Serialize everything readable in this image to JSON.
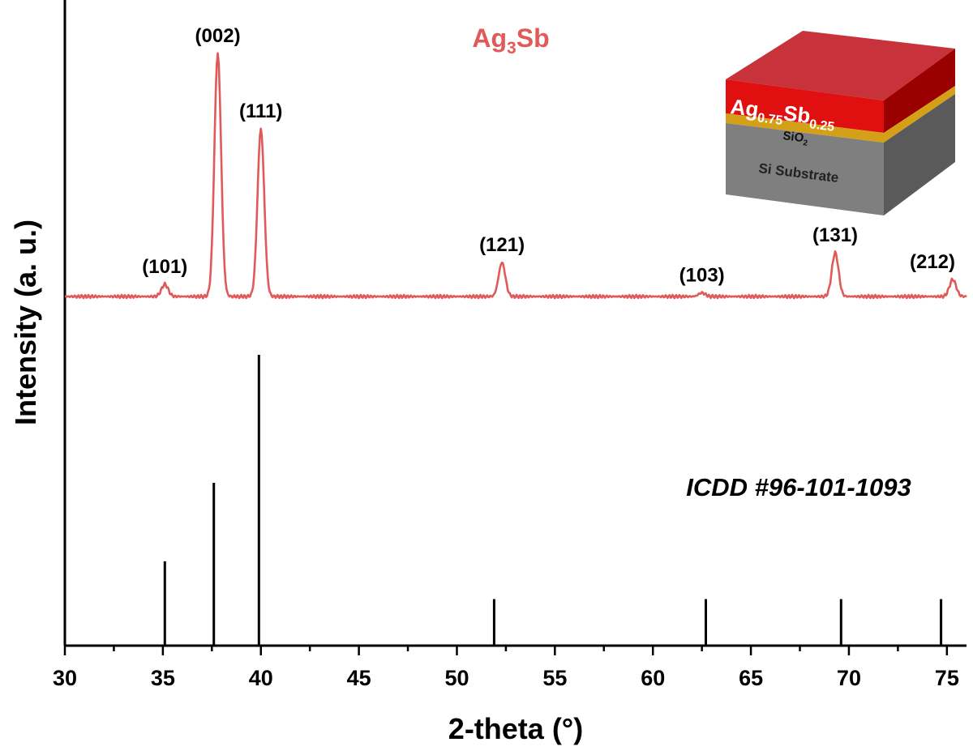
{
  "chart_data": {
    "type": "line",
    "xlabel": "2-theta (°)",
    "ylabel": "Intensity (a. u.)",
    "xlim": [
      30,
      76
    ],
    "x_ticks": [
      "30",
      "35",
      "40",
      "45",
      "50",
      "55",
      "60",
      "65",
      "70",
      "75"
    ],
    "grid": false,
    "sample": {
      "name_main": "Ag",
      "name_sub": "3",
      "name_tail": "Sb",
      "color": "#e05a5a",
      "baseline": 0.05,
      "peaks": [
        {
          "label": "(101)",
          "x": 35.1,
          "height": 0.05
        },
        {
          "label": "(002)",
          "x": 37.8,
          "height": 1.0
        },
        {
          "label": "(111)",
          "x": 40.0,
          "height": 0.69
        },
        {
          "label": "(121)",
          "x": 52.3,
          "height": 0.14
        },
        {
          "label": "(103)",
          "x": 62.5,
          "height": 0.015
        },
        {
          "label": "(131)",
          "x": 69.3,
          "height": 0.18
        },
        {
          "label": "(212)",
          "x": 75.3,
          "height": 0.07
        }
      ]
    },
    "reference": {
      "label": "ICDD #96-101-1093",
      "color": "#000000",
      "lines": [
        {
          "x": 35.1,
          "intensity": 0.29
        },
        {
          "x": 37.6,
          "intensity": 0.56
        },
        {
          "x": 39.9,
          "intensity": 1.0
        },
        {
          "x": 51.9,
          "intensity": 0.16
        },
        {
          "x": 62.7,
          "intensity": 0.16
        },
        {
          "x": 69.6,
          "intensity": 0.16
        },
        {
          "x": 74.7,
          "intensity": 0.16
        }
      ]
    }
  },
  "inset": {
    "film_main": "Ag",
    "film_sub1": "0.75",
    "film_mid": "Sb",
    "film_sub2": "0.25",
    "oxide_main": "SiO",
    "oxide_sub": "2",
    "substrate": "Si Substrate",
    "colors": {
      "film_top": "#c8323a",
      "film_front": "#e01010",
      "film_side": "#9a0000",
      "oxide": "#d4a017",
      "substrate_front": "#7f7f7f",
      "substrate_side": "#5a5a5a"
    }
  }
}
